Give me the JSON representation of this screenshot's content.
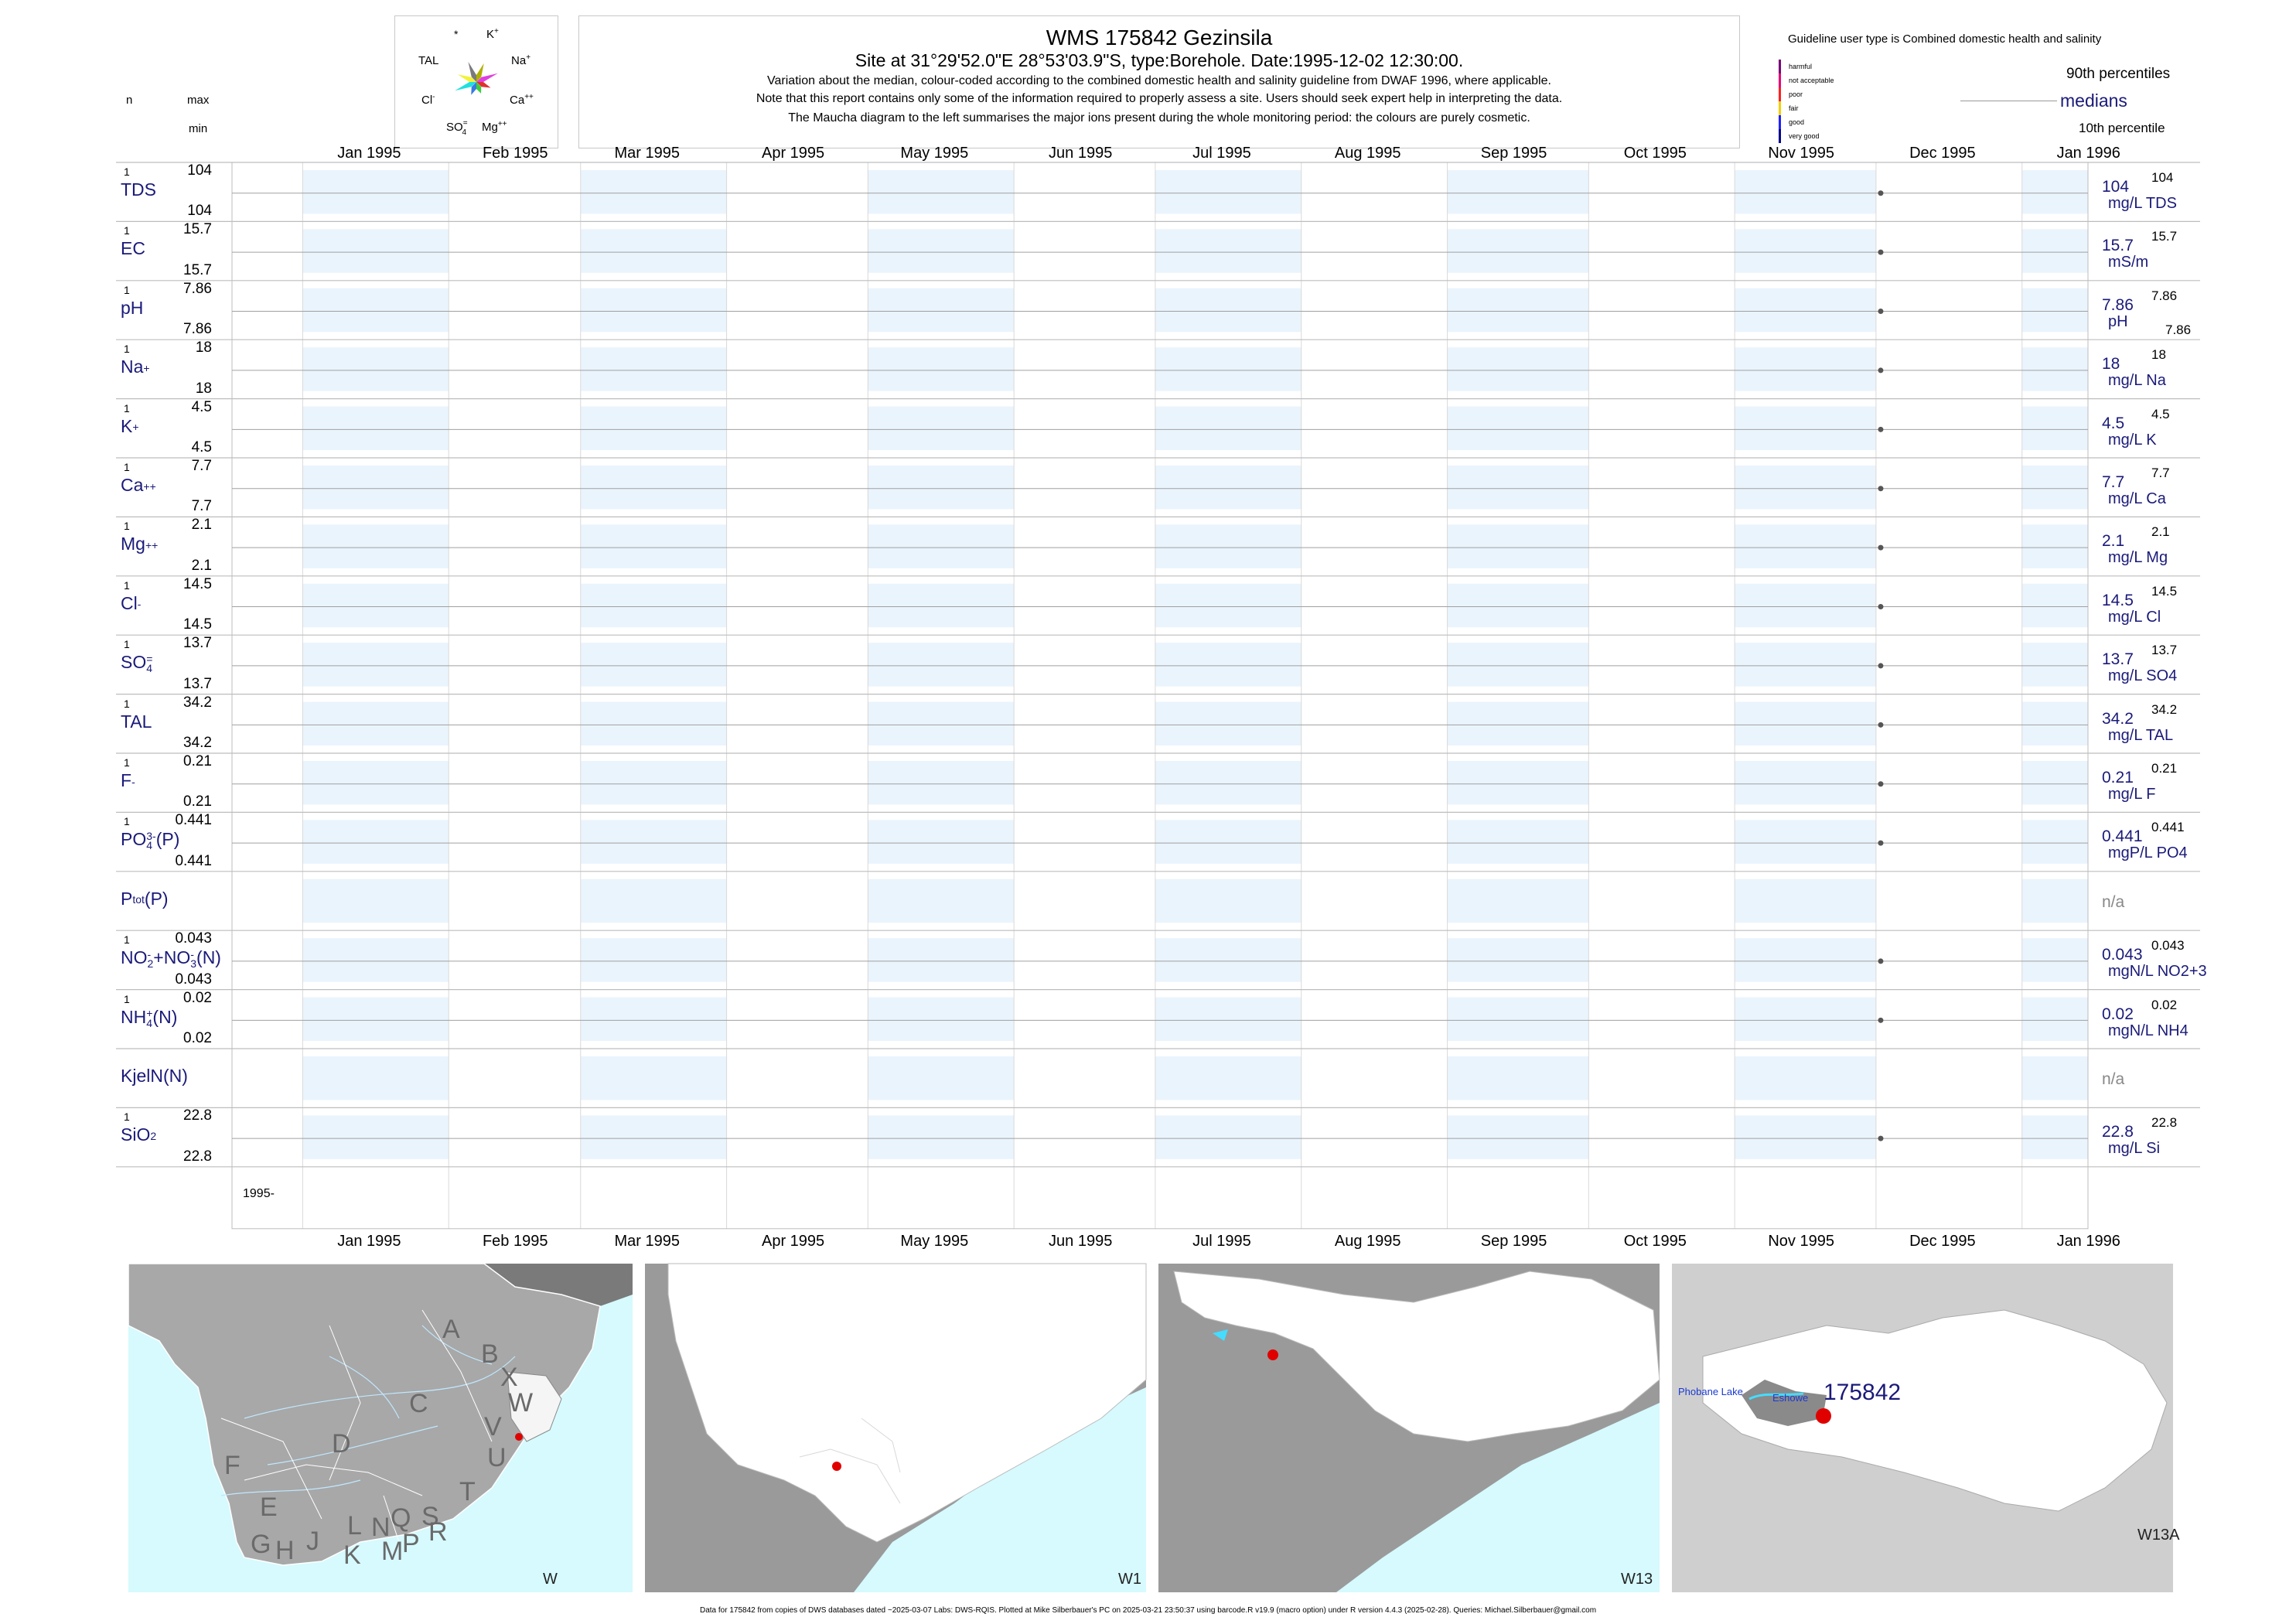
{
  "header": {
    "title": "WMS 175842  Gezinsila",
    "subtitle": "Site at 31°29'52.0\"E 28°53'03.9\"S, type:Borehole. Date:1995-12-02 12:30:00.",
    "note1": "Variation about the median,  colour-coded according to the combined domestic health and salinity guideline from DWAF 1996, where applicable.",
    "note2": "Note that this report contains only some of the information required to properly assess a site. Users should seek expert help in interpreting the data.",
    "note3": "The Maucha diagram to the left summarises the major ions present during the whole monitoring period: the colours are purely cosmetic."
  },
  "left_headers": {
    "n": "n",
    "max": "max",
    "min": "min"
  },
  "maucha": {
    "labels": {
      "star": "*",
      "k": "K",
      "k_sup": "+",
      "tal": "TAL",
      "na": "Na",
      "na_sup": "+",
      "cl": "Cl",
      "cl_sup": "-",
      "ca": "Ca",
      "ca_sup": "++",
      "so4": "SO",
      "so4_sub": "4",
      "so4_sup": "=",
      "mg": "Mg",
      "mg_sup": "++"
    },
    "colors": {
      "yellow": "#f2f23a",
      "cyan": "#22e0e0",
      "magenta": "#e040e0",
      "red": "#e03030",
      "gray": "#7a7a7a",
      "blue": "#3a7ae0",
      "green": "#3ad040",
      "olive": "#b0b000"
    }
  },
  "legend": {
    "guideline_title": "Guideline user type is Combined domestic health and salinity",
    "categories": [
      {
        "label": "harmful",
        "color": "#7a0078"
      },
      {
        "label": "not acceptable",
        "color": "#e8007a"
      },
      {
        "label": "poor",
        "color": "#ff2020"
      },
      {
        "label": "fair",
        "color": "#f0d000"
      },
      {
        "label": "good",
        "color": "#2020ff"
      },
      {
        "label": "very good",
        "color": "#000090"
      }
    ],
    "p90": "90th percentiles",
    "medians": "medians",
    "p10": "10th percentile"
  },
  "chart_data": {
    "type": "scatter",
    "x_axis": {
      "ticks": [
        "Jan 1995",
        "Feb 1995",
        "Mar 1995",
        "Apr 1995",
        "May 1995",
        "Jun 1995",
        "Jul 1995",
        "Aug 1995",
        "Sep 1995",
        "Oct 1995",
        "Nov 1995",
        "Dec 1995",
        "Jan 1996"
      ],
      "range": [
        "1994-12-17",
        "1996-01-15"
      ],
      "year_label": "1995-"
    },
    "sample_date": "1995-12-02",
    "grid": true,
    "rows": [
      {
        "label": "TDS",
        "n": "1",
        "max": "104",
        "min": "104",
        "median": "104",
        "unit": "mg/L TDS",
        "p90": "104",
        "p10": "",
        "value": 104
      },
      {
        "label": "EC",
        "n": "1",
        "max": "15.7",
        "min": "15.7",
        "median": "15.7",
        "unit": "mS/m",
        "p90": "15.7",
        "p10": "",
        "value": 15.7
      },
      {
        "label": "pH",
        "n": "1",
        "max": "7.86",
        "min": "7.86",
        "median": "7.86",
        "unit": "pH",
        "p90": "7.86",
        "p10": "7.86",
        "value": 7.86
      },
      {
        "label": "Na",
        "sup": "+",
        "n": "1",
        "max": "18",
        "min": "18",
        "median": "18",
        "unit": "mg/L Na",
        "p90": "18",
        "p10": "",
        "value": 18
      },
      {
        "label": "K",
        "sup": "+",
        "n": "1",
        "max": "4.5",
        "min": "4.5",
        "median": "4.5",
        "unit": "mg/L K",
        "p90": "4.5",
        "p10": "",
        "value": 4.5
      },
      {
        "label": "Ca",
        "sup": "++",
        "n": "1",
        "max": "7.7",
        "min": "7.7",
        "median": "7.7",
        "unit": "mg/L Ca",
        "p90": "7.7",
        "p10": "",
        "value": 7.7
      },
      {
        "label": "Mg",
        "sup": "++",
        "n": "1",
        "max": "2.1",
        "min": "2.1",
        "median": "2.1",
        "unit": "mg/L Mg",
        "p90": "2.1",
        "p10": "",
        "value": 2.1
      },
      {
        "label": "Cl",
        "sup": "-",
        "n": "1",
        "max": "14.5",
        "min": "14.5",
        "median": "14.5",
        "unit": "mg/L Cl",
        "p90": "14.5",
        "p10": "",
        "value": 14.5
      },
      {
        "label": "SO",
        "sub": "4",
        "sup": "=",
        "n": "1",
        "max": "13.7",
        "min": "13.7",
        "median": "13.7",
        "unit": "mg/L SO4",
        "p90": "13.7",
        "p10": "",
        "value": 13.7
      },
      {
        "label": "TAL",
        "n": "1",
        "max": "34.2",
        "min": "34.2",
        "median": "34.2",
        "unit": "mg/L TAL",
        "p90": "34.2",
        "p10": "",
        "value": 34.2
      },
      {
        "label": "F",
        "sup": "-",
        "n": "1",
        "max": "0.21",
        "min": "0.21",
        "median": "0.21",
        "unit": "mg/L F",
        "p90": "0.21",
        "p10": "",
        "value": 0.21
      },
      {
        "label": "PO",
        "sub": "4",
        "sup": "3-",
        "tail": "(P)",
        "n": "1",
        "max": "0.441",
        "min": "0.441",
        "median": "0.441",
        "unit": "mgP/L PO4",
        "p90": "0.441",
        "p10": "",
        "value": 0.441
      },
      {
        "label": "P",
        "sub": "tot",
        "tail": "(P)",
        "n": "",
        "max": "",
        "min": "",
        "median": "n/a",
        "unit": "",
        "p90": "",
        "p10": "",
        "value": null
      },
      {
        "label": "NO",
        "sub": "2",
        "sup": "-",
        "tail": "+NO",
        "sub2": "3",
        "sup2": "-",
        "tail2": "(N)",
        "n": "1",
        "max": "0.043",
        "min": "0.043",
        "median": "0.043",
        "unit": "mgN/L NO2+3",
        "p90": "0.043",
        "p10": "",
        "value": 0.043
      },
      {
        "label": "NH",
        "sub": "4",
        "sup": "+",
        "tail": "(N)",
        "n": "1",
        "max": "0.02",
        "min": "0.02",
        "median": "0.02",
        "unit": "mgN/L NH4",
        "p90": "0.02",
        "p10": "",
        "value": 0.02
      },
      {
        "label": "KjelN(N)",
        "n": "",
        "max": "",
        "min": "",
        "median": "n/a",
        "unit": "",
        "p90": "",
        "p10": "",
        "value": null
      },
      {
        "label": "SiO",
        "sub": "2",
        "n": "1",
        "max": "22.8",
        "min": "22.8",
        "median": "22.8",
        "unit": "mg/L Si",
        "p90": "22.8",
        "p10": "",
        "value": 22.8
      }
    ]
  },
  "maps": {
    "m1": {
      "corner": "W",
      "letters": [
        "A",
        "B",
        "X",
        "C",
        "W",
        "V",
        "U",
        "D",
        "T",
        "F",
        "E",
        "G",
        "H",
        "J",
        "K",
        "L",
        "N",
        "M",
        "Q",
        "P",
        "R",
        "S"
      ]
    },
    "m2": {
      "corner": "W1"
    },
    "m3": {
      "corner": "W13"
    },
    "m4": {
      "corner": "W13A",
      "site": "175842",
      "lake": "Phobane Lake",
      "town": "Eshowe"
    }
  },
  "footer": "Data for 175842 from copies of DWS databases dated ~2025-03-07 Labs: DWS-RQIS. Plotted at Mike Silberbauer's PC on 2025-03-21 23:50:37 using barcode.R v19.9 (macro option) under R version 4.4.3 (2025-02-28). Queries: Michael.Silberbauer@gmail.com"
}
